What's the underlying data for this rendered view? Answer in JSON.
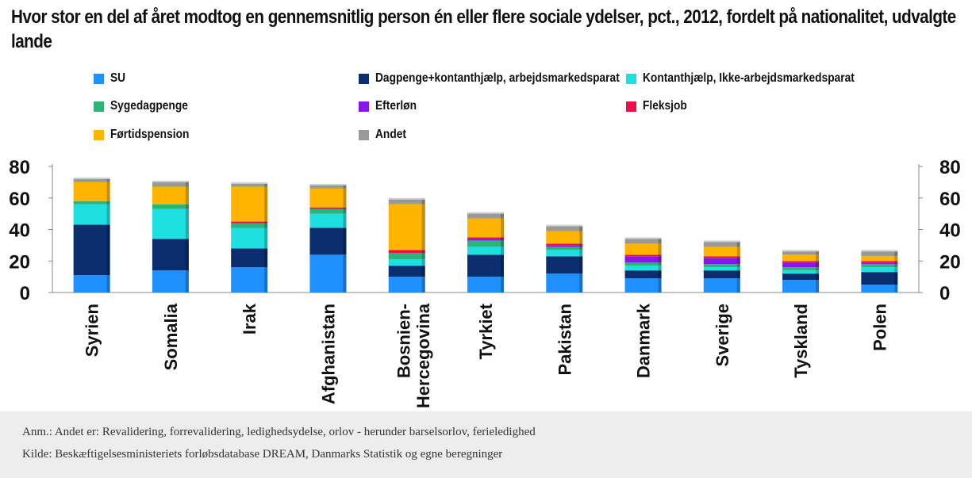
{
  "title": "Hvor stor en del af året modtog en gennemsnitlig person én eller flere sociale ydelser, pct., 2012, fordelt på nationalitet, udvalgte lande",
  "chart_data": {
    "type": "bar",
    "stacked": true,
    "categories": [
      "Syrien",
      "Somalia",
      "Irak",
      "Afghanistan",
      "Bosnien-Hercegovina",
      "Tyrkiet",
      "Pakistan",
      "Danmark",
      "Sverige",
      "Tyskland",
      "Polen"
    ],
    "series": [
      {
        "name": "SU",
        "color": "#1e90ff",
        "values": [
          11,
          14,
          16,
          24,
          10,
          10,
          12,
          9,
          9,
          8,
          5
        ]
      },
      {
        "name": "Dagpenge+kontanthjælp, arbejdsmarkedsparat",
        "color": "#0a2e6e",
        "values": [
          32,
          20,
          12,
          17,
          7,
          14,
          11,
          5,
          5,
          4,
          8
        ]
      },
      {
        "name": "Kontanthjælp, Ikke-arbejdsmarkedsparat",
        "color": "#1ee0e0",
        "values": [
          13,
          19,
          13,
          9,
          4,
          5,
          4,
          3,
          2,
          2,
          3
        ]
      },
      {
        "name": "Sygedagpenge",
        "color": "#2fb37a",
        "values": [
          2,
          3,
          3,
          3,
          4,
          4,
          2,
          2,
          2,
          2,
          2
        ]
      },
      {
        "name": "Efterløn",
        "color": "#8a16e6",
        "values": [
          0,
          0,
          0,
          0,
          0,
          1,
          1,
          4,
          4,
          3,
          1
        ]
      },
      {
        "name": "Fleksjob",
        "color": "#e8114a",
        "values": [
          0,
          0,
          1,
          1,
          2,
          1,
          1,
          1,
          1,
          1,
          1
        ]
      },
      {
        "name": "Førtidspension",
        "color": "#ffb400",
        "values": [
          12,
          11,
          22,
          12,
          29,
          12,
          8,
          7,
          6,
          4,
          3
        ]
      },
      {
        "name": "Andet",
        "color": "#999999",
        "values": [
          2,
          3,
          2,
          2,
          3,
          3,
          3,
          3,
          3,
          2,
          3
        ]
      }
    ],
    "ylim": [
      0,
      80
    ],
    "yticks": [
      0,
      20,
      40,
      60,
      80
    ],
    "grid": false,
    "legend_position": "top"
  },
  "notes": [
    "Anm.: Andet er: Revalidering, forrevalidering, ledighedsydelse, orlov - herunder barselsorlov, ferieledighed",
    "Kilde: Beskæftigelsesministeriets forløbsdatabase DREAM, Danmarks Statistik og egne beregninger"
  ]
}
